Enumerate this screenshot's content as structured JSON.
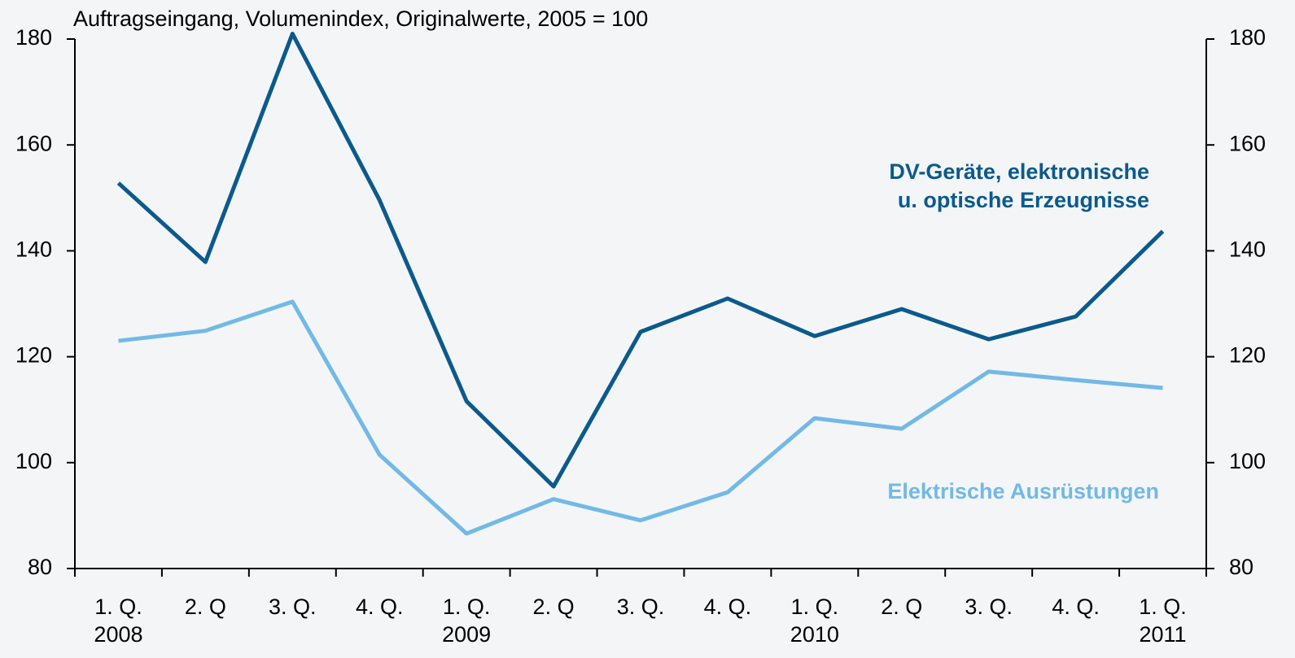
{
  "chart_data": {
    "type": "line",
    "title": "Auftragseingang, Volumenindex, Originalwerte,  2005 = 100",
    "categories": [
      "1. Q.",
      "2. Q",
      "3. Q.",
      "4. Q.",
      "1. Q.",
      "2. Q",
      "3. Q.",
      "4. Q.",
      "1. Q.",
      "2. Q",
      "3. Q.",
      "4. Q.",
      "1. Q."
    ],
    "category_years": [
      "2008",
      null,
      null,
      null,
      "2009",
      null,
      null,
      null,
      "2010",
      null,
      null,
      null,
      "2011"
    ],
    "series": [
      {
        "name": "DV-Geräte, elektronische\nu. optische Erzeugnisse",
        "color": "#0b5a8c",
        "values": [
          152.8,
          137.9,
          181,
          149.6,
          111.6,
          95.5,
          124.7,
          131,
          123.9,
          129,
          123.3,
          127.6,
          143.7
        ]
      },
      {
        "name": "Elektrische Ausrüstungen",
        "color": "#72b9e6",
        "values": [
          123,
          124.9,
          130.4,
          101.5,
          86.6,
          93.1,
          89.1,
          94.4,
          108.4,
          106.4,
          117.2,
          115.6,
          114.1
        ]
      }
    ],
    "ylim": [
      80,
      180
    ],
    "yticks": [
      80,
      100,
      120,
      140,
      160,
      180
    ],
    "y2lim": [
      80,
      180
    ],
    "y2ticks": [
      80,
      100,
      120,
      140,
      160,
      180
    ],
    "grid": false
  }
}
